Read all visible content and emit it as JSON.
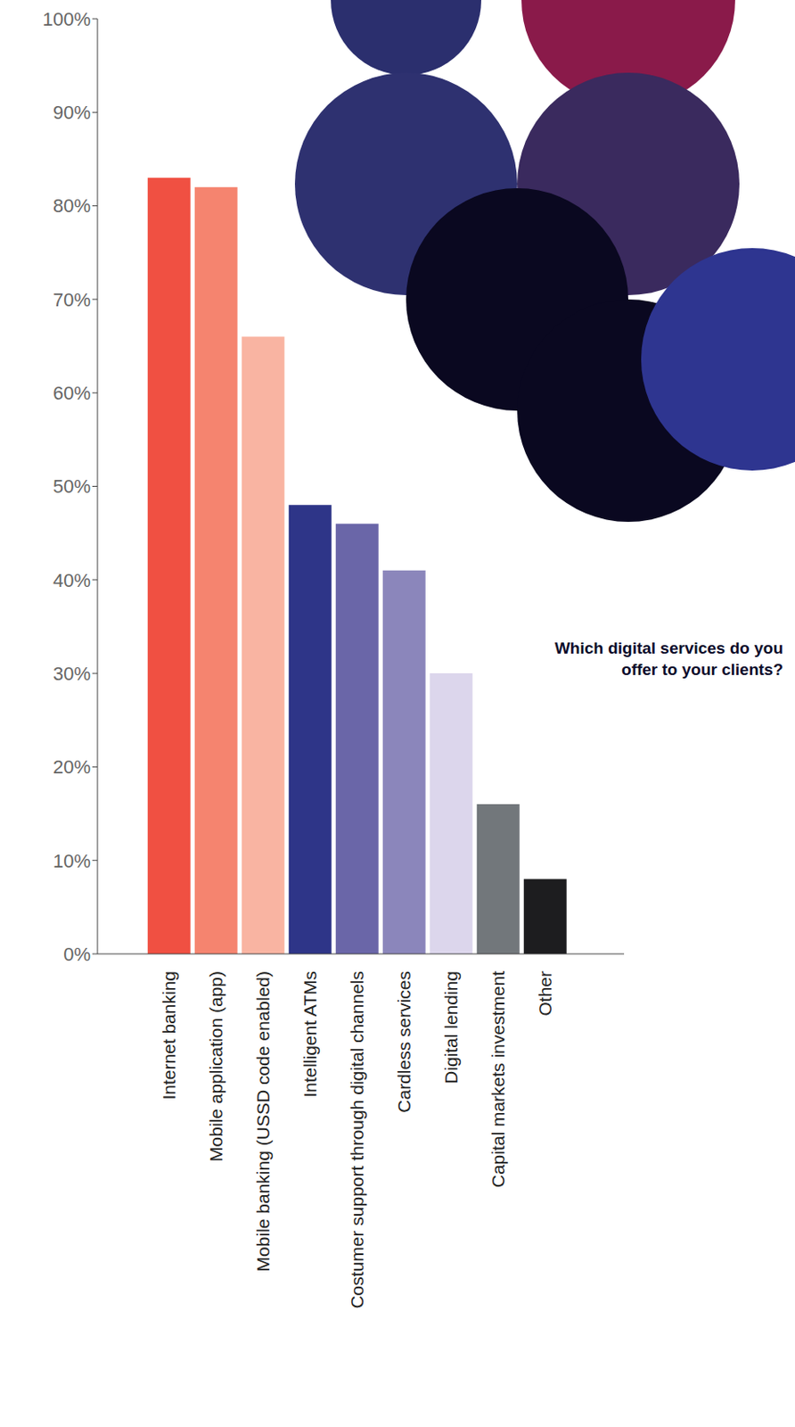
{
  "chart_data": {
    "type": "bar",
    "title": "Which digital services do you offer to your clients?",
    "categories": [
      "Internet banking",
      "Mobile application (app)",
      "Mobile banking (USSD code enabled)",
      "Intelligent ATMs",
      "Costumer support through digital channels",
      "Cardless services",
      "Digital lending",
      "Capital markets investment",
      "Other"
    ],
    "values": [
      83,
      82,
      66,
      48,
      46,
      41,
      30,
      16,
      8
    ],
    "colors": [
      "#f05042",
      "#f5846f",
      "#f9b4a2",
      "#2e3588",
      "#6a66a8",
      "#8b86bb",
      "#dcd6ec",
      "#72777b",
      "#1d1d1f"
    ],
    "ylim": [
      0,
      100
    ],
    "yticks": [
      {
        "value": 0,
        "label": "0%"
      },
      {
        "value": 10,
        "label": "10%"
      },
      {
        "value": 20,
        "label": "20%"
      },
      {
        "value": 30,
        "label": "30%"
      },
      {
        "value": 40,
        "label": "40%"
      },
      {
        "value": 50,
        "label": "50%"
      },
      {
        "value": 60,
        "label": "60%"
      },
      {
        "value": 70,
        "label": "70%"
      },
      {
        "value": 80,
        "label": "80%"
      },
      {
        "value": 90,
        "label": "90%"
      },
      {
        "value": 100,
        "label": "100%"
      }
    ],
    "grid": false
  }
}
